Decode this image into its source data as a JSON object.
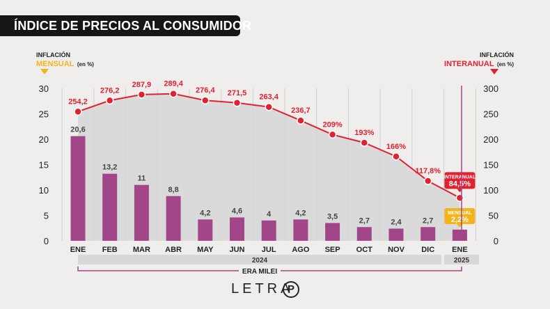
{
  "title": "ÍNDICE DE PRECIOS AL CONSUMIDOR",
  "left_axis_label": {
    "line1": "INFLACIÓN",
    "line2": "MENSUAL",
    "unit": "(en %)"
  },
  "right_axis_label": {
    "line1": "INFLACIÓN",
    "line2": "INTERANUAL",
    "unit": "(en %)"
  },
  "callouts": {
    "interanual_label": "INTERANUAL",
    "interanual_value": "84,5%",
    "mensual_label": "MENSUAL",
    "mensual_value": "2,2%"
  },
  "year_labels": {
    "y2024": "2024",
    "y2025": "2025"
  },
  "era_label": "ERA MILEI",
  "logo": {
    "text": "LETRA",
    "mark": "P"
  },
  "colors": {
    "bar": "#a2468a",
    "line": "#e0212f",
    "area": "#d6d6d8",
    "accent_yellow": "#f3b51b"
  },
  "chart_data": {
    "type": "bar",
    "categories": [
      "ENE",
      "FEB",
      "MAR",
      "ABR",
      "MAY",
      "JUN",
      "JUL",
      "AGO",
      "SEP",
      "OCT",
      "NOV",
      "DIC",
      "ENE"
    ],
    "series": [
      {
        "name": "Inflación mensual (en %)",
        "axis": "left",
        "type": "bar",
        "values": [
          20.6,
          13.2,
          11,
          8.8,
          4.2,
          4.6,
          4,
          4.2,
          3.5,
          2.7,
          2.4,
          2.7,
          2.2
        ],
        "labels": [
          "20,6",
          "13,2",
          "11",
          "8,8",
          "4,2",
          "4,6",
          "4",
          "4,2",
          "3,5",
          "2,7",
          "2,4",
          "2,7",
          ""
        ]
      },
      {
        "name": "Inflación interanual (en %)",
        "axis": "right",
        "type": "line",
        "values": [
          254.2,
          276.2,
          287.9,
          289.4,
          276.4,
          271.5,
          263.4,
          236.7,
          209,
          193,
          166,
          117.8,
          84.5
        ],
        "labels": [
          "254,2",
          "276,2",
          "287,9",
          "289,4",
          "276,4",
          "271,5",
          "263,4",
          "236,7",
          "209%",
          "193%",
          "166%",
          "117,8%",
          ""
        ]
      }
    ],
    "left_ylim": [
      0,
      30
    ],
    "left_ticks": [
      "0",
      "5",
      "10",
      "15",
      "20",
      "25",
      "30"
    ],
    "right_ylim": [
      0,
      300
    ],
    "right_ticks": [
      "0",
      "50",
      "100",
      "150",
      "200",
      "250",
      "300"
    ]
  }
}
